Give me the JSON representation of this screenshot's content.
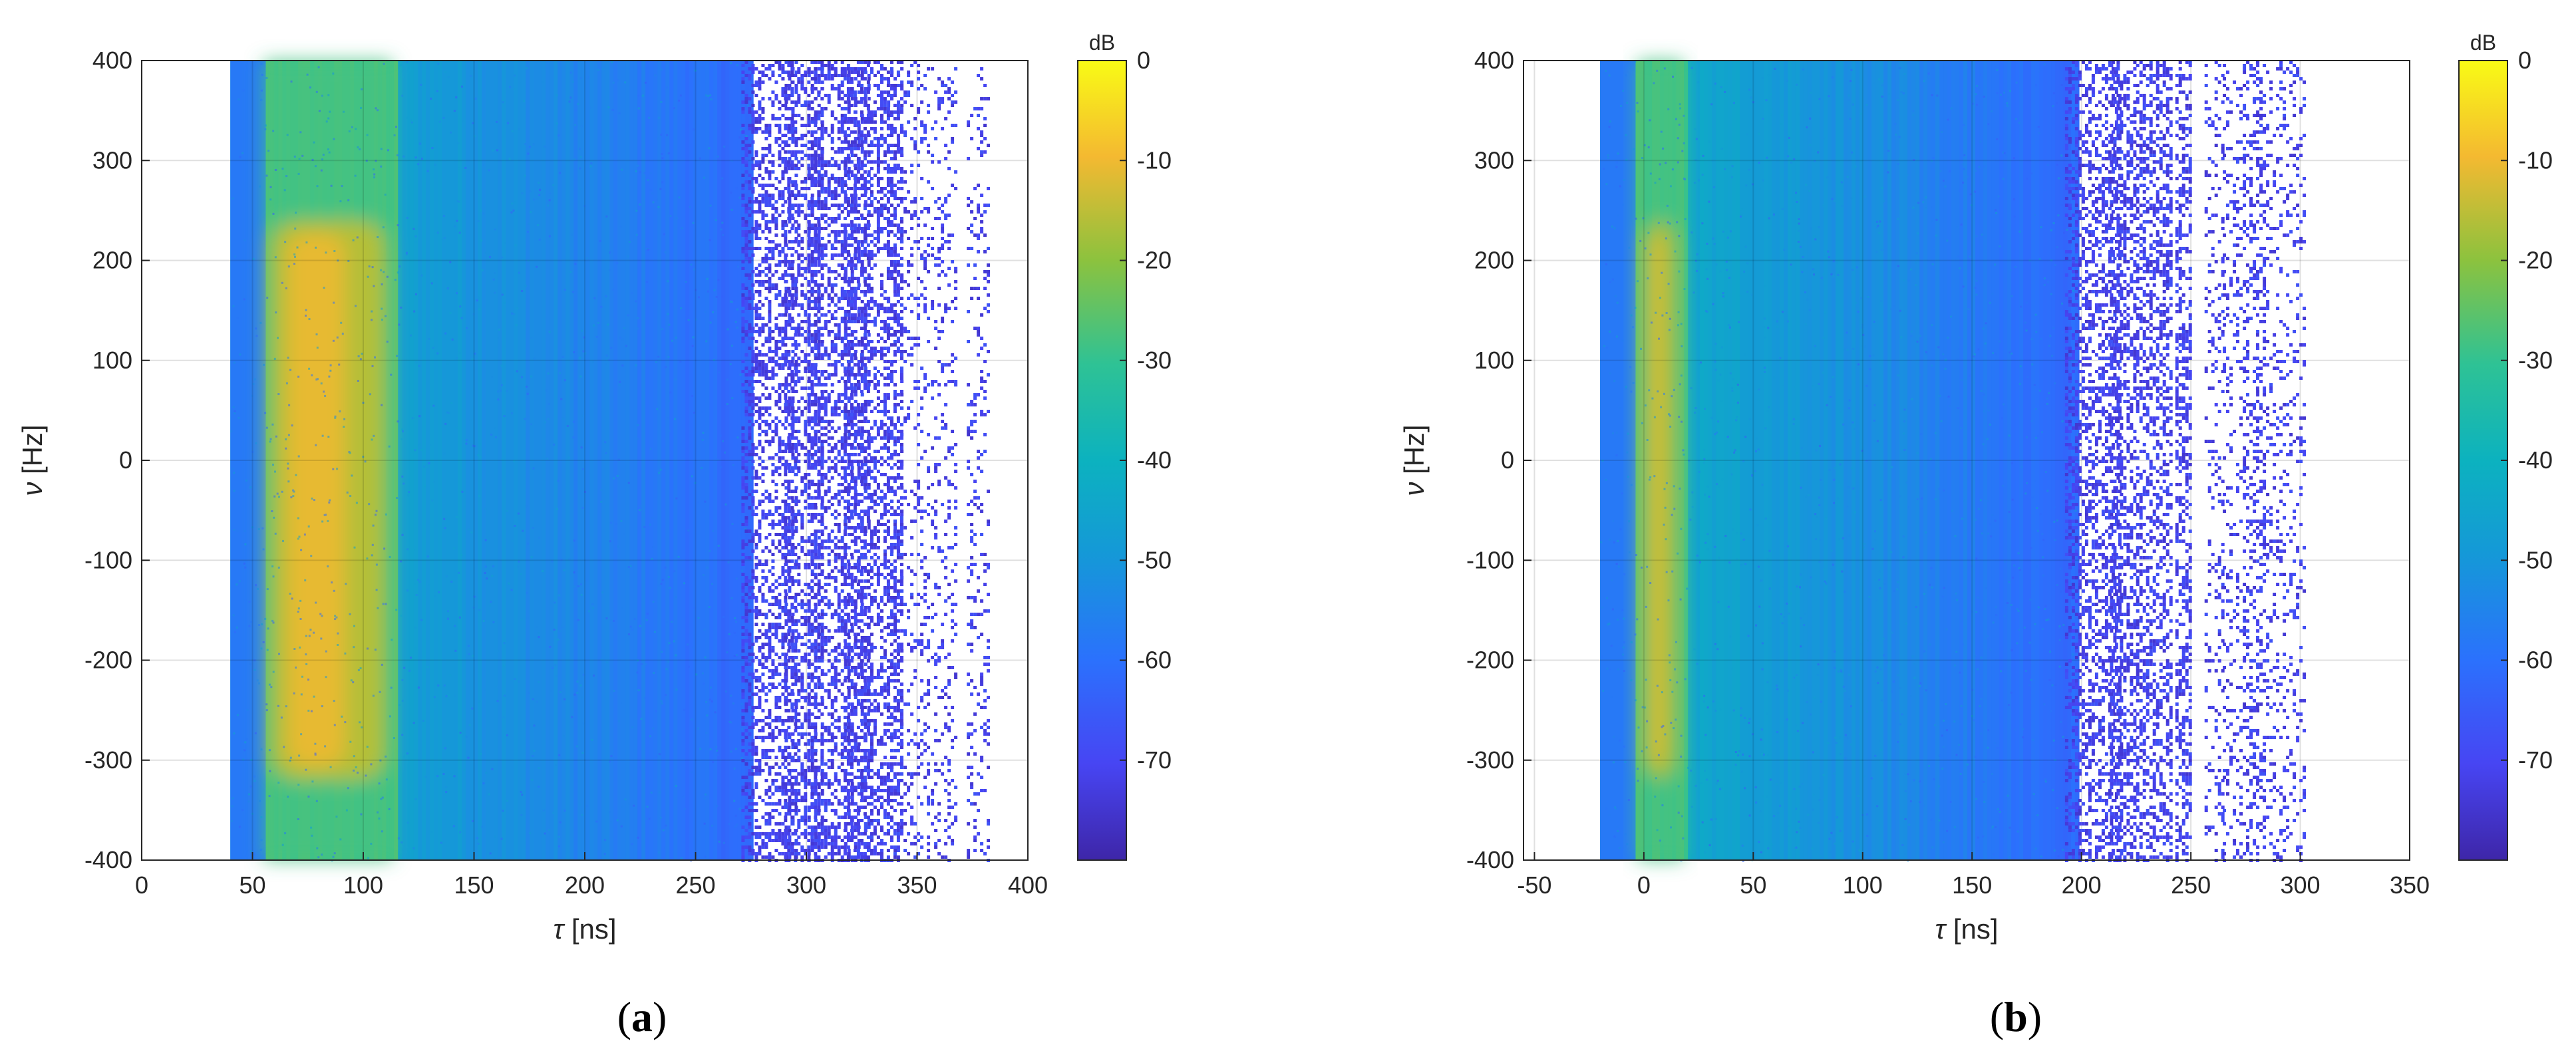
{
  "chart_data": [
    {
      "type": "heatmap",
      "panel_label": "a",
      "xlabel_symbol": "τ",
      "xlabel_unit": "[ns]",
      "ylabel_symbol": "ν",
      "ylabel_unit": "[Hz]",
      "xlim": [
        0,
        400
      ],
      "ylim": [
        -400,
        400
      ],
      "x_ticks": [
        "0",
        "50",
        "100",
        "150",
        "200",
        "250",
        "300",
        "350",
        "400"
      ],
      "y_ticks": [
        "400",
        "300",
        "200",
        "100",
        "0",
        "-100",
        "-200",
        "-300",
        "-400"
      ],
      "grid": true,
      "colorbar": {
        "unit": "dB",
        "range": [
          -80,
          0
        ],
        "ticks": [
          "0",
          "-10",
          "-20",
          "-30",
          "-40",
          "-50",
          "-60",
          "-70"
        ],
        "colormap": "parula"
      },
      "background_region_dB": {
        "x": [
          40,
          275
        ],
        "y": [
          -400,
          400
        ],
        "level": -55
      },
      "main_band_dB": {
        "x": [
          58,
          110
        ],
        "y": [
          -320,
          240
        ],
        "peak": -10
      },
      "sparse_region_dB": {
        "x": [
          275,
          385
        ],
        "level": -72
      }
    },
    {
      "type": "heatmap",
      "panel_label": "b",
      "xlabel_symbol": "τ",
      "xlabel_unit": "[ns]",
      "ylabel_symbol": "ν",
      "ylabel_unit": "[Hz]",
      "xlim": [
        -55,
        350
      ],
      "ylim": [
        -400,
        400
      ],
      "x_ticks": [
        "-50",
        "0",
        "50",
        "100",
        "150",
        "200",
        "250",
        "300",
        "350"
      ],
      "y_ticks": [
        "400",
        "300",
        "200",
        "100",
        "0",
        "-100",
        "-200",
        "-300",
        "-400"
      ],
      "grid": true,
      "colorbar": {
        "unit": "dB",
        "range": [
          -80,
          0
        ],
        "ticks": [
          "0",
          "-10",
          "-20",
          "-30",
          "-40",
          "-50",
          "-60",
          "-70"
        ],
        "colormap": "parula"
      },
      "background_region_dB": {
        "x": [
          -20,
          198
        ],
        "y": [
          -400,
          400
        ],
        "level": -55
      },
      "main_band_dB": {
        "x": [
          0,
          15
        ],
        "y": [
          -320,
          240
        ],
        "peak": -12
      },
      "sparse_region_dB": {
        "x": [
          198,
          295
        ],
        "level": -72
      }
    }
  ]
}
